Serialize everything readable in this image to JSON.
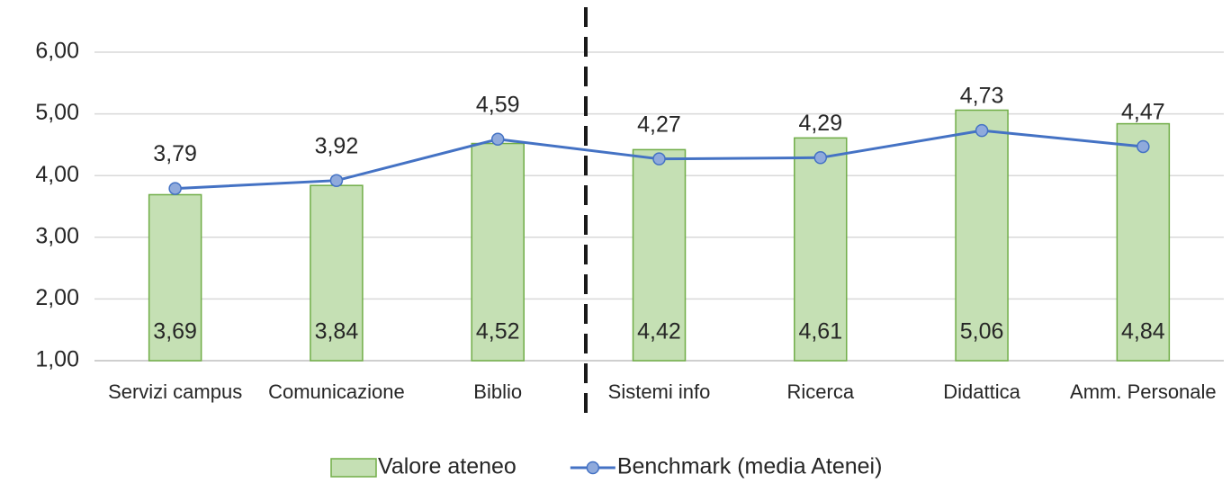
{
  "chart_data": {
    "type": "bar_line",
    "categories": [
      "Servizi campus",
      "Comunicazione",
      "Biblio",
      "Sistemi info",
      "Ricerca",
      "Didattica",
      "Amm. Personale"
    ],
    "series": [
      {
        "name": "Valore ateneo",
        "type": "bar",
        "color": "#c5e0b4",
        "edge_color": "#70ad47",
        "values": [
          3.69,
          3.84,
          4.52,
          4.42,
          4.61,
          5.06,
          4.84
        ],
        "value_labels": [
          "3,69",
          "3,84",
          "4,52",
          "4,42",
          "4,61",
          "5,06",
          "4,84"
        ]
      },
      {
        "name": "Benchmark (media Atenei)",
        "type": "line",
        "color": "#4472c4",
        "marker_color": "#8faadc",
        "values": [
          3.79,
          3.92,
          4.59,
          4.27,
          4.29,
          4.73,
          4.47
        ],
        "value_labels": [
          "3,79",
          "3,92",
          "4,59",
          "4,27",
          "4,29",
          "4,73",
          "4,47"
        ]
      }
    ],
    "ylim": [
      1,
      6
    ],
    "yticks": [
      {
        "value": 1,
        "label": "1,00"
      },
      {
        "value": 2,
        "label": "2,00"
      },
      {
        "value": 3,
        "label": "3,00"
      },
      {
        "value": 4,
        "label": "4,00"
      },
      {
        "value": 5,
        "label": "5,00"
      },
      {
        "value": 6,
        "label": "6,00"
      }
    ],
    "grid": true,
    "legend": "bottom"
  }
}
